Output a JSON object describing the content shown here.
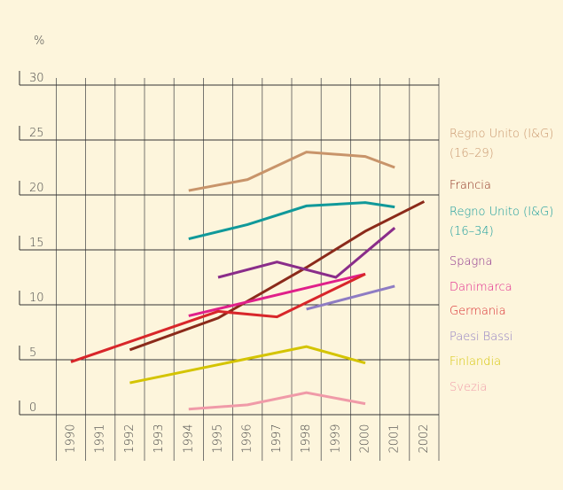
{
  "chart_data": {
    "type": "line",
    "y_label": "%",
    "x": [
      1990,
      1991,
      1992,
      1993,
      1994,
      1995,
      1996,
      1997,
      1998,
      1999,
      2000,
      2001,
      2002
    ],
    "ylim": [
      0,
      30
    ],
    "yticks": [
      0,
      5,
      10,
      15,
      20,
      25,
      30
    ],
    "grid": true,
    "series": [
      {
        "name": "Regno Unito (I&G) (16–29)",
        "color": "#c8946a",
        "x": [
          1994,
          1996,
          1998,
          2000,
          2001
        ],
        "values": [
          20.4,
          21.4,
          23.9,
          23.5,
          22.5
        ]
      },
      {
        "name": "Francia",
        "color": "#8b2a1a",
        "x": [
          1992,
          1995,
          1998,
          2000,
          2002
        ],
        "values": [
          5.9,
          8.8,
          13.4,
          16.7,
          19.4
        ]
      },
      {
        "name": "Regno Unito (I&G) (16–34)",
        "color": "#10999a",
        "x": [
          1994,
          1996,
          1998,
          2000,
          2001
        ],
        "values": [
          16.0,
          17.3,
          19.0,
          19.3,
          18.9
        ]
      },
      {
        "name": "Spagna",
        "color": "#8a2d8a",
        "x": [
          1995,
          1997,
          1999,
          2001
        ],
        "values": [
          12.5,
          13.9,
          12.5,
          17.0
        ]
      },
      {
        "name": "Danimarca",
        "color": "#e0208a",
        "x": [
          1994,
          2000
        ],
        "values": [
          9.0,
          12.8
        ]
      },
      {
        "name": "Germania",
        "color": "#d8262a",
        "x": [
          1990,
          1995,
          1997,
          2000
        ],
        "values": [
          4.8,
          9.4,
          8.9,
          12.8
        ]
      },
      {
        "name": "Paesi Bassi",
        "color": "#8e7cc3",
        "x": [
          1998,
          2001
        ],
        "values": [
          9.6,
          11.7
        ]
      },
      {
        "name": "Finlandia",
        "color": "#d4c400",
        "x": [
          1992,
          1998,
          2000
        ],
        "values": [
          2.9,
          6.2,
          4.7
        ]
      },
      {
        "name": "Svezia",
        "color": "#f09aa8",
        "x": [
          1994,
          1996,
          1998,
          2000
        ],
        "values": [
          0.5,
          0.9,
          2.0,
          1.0
        ]
      }
    ]
  }
}
